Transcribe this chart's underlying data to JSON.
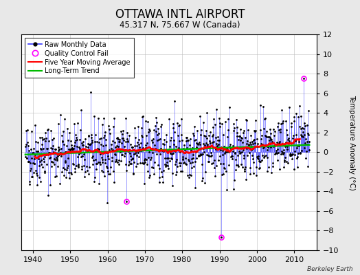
{
  "title": "OTTAWA INTL AIRPORT",
  "subtitle": "45.317 N, 75.667 W (Canada)",
  "ylabel": "Temperature Anomaly (°C)",
  "watermark": "Berkeley Earth",
  "xlim": [
    1937,
    2016
  ],
  "ylim": [
    -10,
    12
  ],
  "yticks": [
    -10,
    -8,
    -6,
    -4,
    -2,
    0,
    2,
    4,
    6,
    8,
    10,
    12
  ],
  "xticks": [
    1940,
    1950,
    1960,
    1970,
    1980,
    1990,
    2000,
    2010
  ],
  "start_year": 1938,
  "end_year": 2014,
  "seed": 42,
  "noise_scale": 1.6,
  "trend_slope": 0.013,
  "trend_intercept": -0.25,
  "raw_color": "#3333ff",
  "moving_avg_color": "#ff0000",
  "trend_color": "#00bb00",
  "qc_color": "#ff00ff",
  "background_color": "#e8e8e8",
  "plot_bg_color": "#ffffff",
  "title_fontsize": 12,
  "subtitle_fontsize": 8.5,
  "label_fontsize": 7.5,
  "tick_fontsize": 8,
  "legend_fontsize": 7,
  "qc_points": [
    [
      1965.0,
      -5.0
    ],
    [
      1990.5,
      -8.7
    ],
    [
      2012.5,
      7.5
    ]
  ]
}
